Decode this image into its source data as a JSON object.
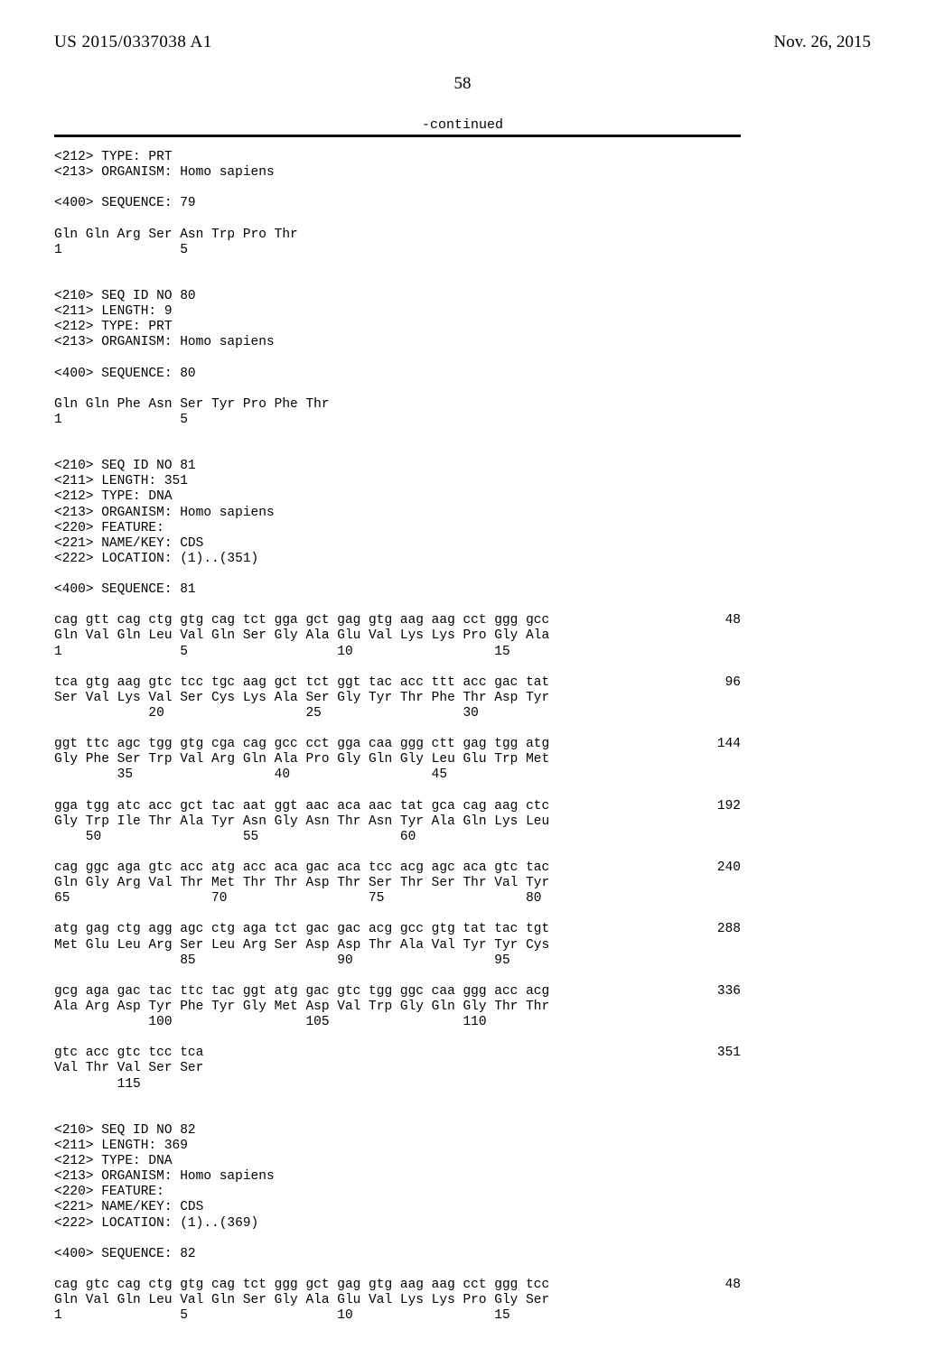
{
  "header": {
    "pub_num": "US 2015/0337038 A1",
    "pub_date": "Nov. 26, 2015"
  },
  "page_number": "58",
  "continued_label": "-continued",
  "blocks": [
    {
      "type": "meta",
      "lines": [
        "<212> TYPE: PRT",
        "<213> ORGANISM: Homo sapiens"
      ]
    },
    {
      "type": "blank"
    },
    {
      "type": "meta",
      "lines": [
        "<400> SEQUENCE: 79"
      ]
    },
    {
      "type": "blank"
    },
    {
      "type": "aa",
      "lines": [
        "Gln Gln Arg Ser Asn Trp Pro Thr",
        "1               5"
      ]
    },
    {
      "type": "blank"
    },
    {
      "type": "blank"
    },
    {
      "type": "meta",
      "lines": [
        "<210> SEQ ID NO 80",
        "<211> LENGTH: 9",
        "<212> TYPE: PRT",
        "<213> ORGANISM: Homo sapiens"
      ]
    },
    {
      "type": "blank"
    },
    {
      "type": "meta",
      "lines": [
        "<400> SEQUENCE: 80"
      ]
    },
    {
      "type": "blank"
    },
    {
      "type": "aa",
      "lines": [
        "Gln Gln Phe Asn Ser Tyr Pro Phe Thr",
        "1               5"
      ]
    },
    {
      "type": "blank"
    },
    {
      "type": "blank"
    },
    {
      "type": "meta",
      "lines": [
        "<210> SEQ ID NO 81",
        "<211> LENGTH: 351",
        "<212> TYPE: DNA",
        "<213> ORGANISM: Homo sapiens",
        "<220> FEATURE:",
        "<221> NAME/KEY: CDS",
        "<222> LOCATION: (1)..(351)"
      ]
    },
    {
      "type": "blank"
    },
    {
      "type": "meta",
      "lines": [
        "<400> SEQUENCE: 81"
      ]
    },
    {
      "type": "blank"
    },
    {
      "type": "codon",
      "dna": "cag gtt cag ctg gtg cag tct gga gct gag gtg aag aag cct ggg gcc",
      "count": "48",
      "aa": "Gln Val Gln Leu Val Gln Ser Gly Ala Glu Val Lys Lys Pro Gly Ala",
      "num": "1               5                   10                  15"
    },
    {
      "type": "blank"
    },
    {
      "type": "codon",
      "dna": "tca gtg aag gtc tcc tgc aag gct tct ggt tac acc ttt acc gac tat",
      "count": "96",
      "aa": "Ser Val Lys Val Ser Cys Lys Ala Ser Gly Tyr Thr Phe Thr Asp Tyr",
      "num": "            20                  25                  30"
    },
    {
      "type": "blank"
    },
    {
      "type": "codon",
      "dna": "ggt ttc agc tgg gtg cga cag gcc cct gga caa ggg ctt gag tgg atg",
      "count": "144",
      "aa": "Gly Phe Ser Trp Val Arg Gln Ala Pro Gly Gln Gly Leu Glu Trp Met",
      "num": "        35                  40                  45"
    },
    {
      "type": "blank"
    },
    {
      "type": "codon",
      "dna": "gga tgg atc acc gct tac aat ggt aac aca aac tat gca cag aag ctc",
      "count": "192",
      "aa": "Gly Trp Ile Thr Ala Tyr Asn Gly Asn Thr Asn Tyr Ala Gln Lys Leu",
      "num": "    50                  55                  60"
    },
    {
      "type": "blank"
    },
    {
      "type": "codon",
      "dna": "cag ggc aga gtc acc atg acc aca gac aca tcc acg agc aca gtc tac",
      "count": "240",
      "aa": "Gln Gly Arg Val Thr Met Thr Thr Asp Thr Ser Thr Ser Thr Val Tyr",
      "num": "65                  70                  75                  80"
    },
    {
      "type": "blank"
    },
    {
      "type": "codon",
      "dna": "atg gag ctg agg agc ctg aga tct gac gac acg gcc gtg tat tac tgt",
      "count": "288",
      "aa": "Met Glu Leu Arg Ser Leu Arg Ser Asp Asp Thr Ala Val Tyr Tyr Cys",
      "num": "                85                  90                  95"
    },
    {
      "type": "blank"
    },
    {
      "type": "codon",
      "dna": "gcg aga gac tac ttc tac ggt atg gac gtc tgg ggc caa ggg acc acg",
      "count": "336",
      "aa": "Ala Arg Asp Tyr Phe Tyr Gly Met Asp Val Trp Gly Gln Gly Thr Thr",
      "num": "            100                 105                 110"
    },
    {
      "type": "blank"
    },
    {
      "type": "codon",
      "dna": "gtc acc gtc tcc tca",
      "count": "351",
      "aa": "Val Thr Val Ser Ser",
      "num": "        115"
    },
    {
      "type": "blank"
    },
    {
      "type": "blank"
    },
    {
      "type": "meta",
      "lines": [
        "<210> SEQ ID NO 82",
        "<211> LENGTH: 369",
        "<212> TYPE: DNA",
        "<213> ORGANISM: Homo sapiens",
        "<220> FEATURE:",
        "<221> NAME/KEY: CDS",
        "<222> LOCATION: (1)..(369)"
      ]
    },
    {
      "type": "blank"
    },
    {
      "type": "meta",
      "lines": [
        "<400> SEQUENCE: 82"
      ]
    },
    {
      "type": "blank"
    },
    {
      "type": "codon",
      "dna": "cag gtc cag ctg gtg cag tct ggg gct gag gtg aag aag cct ggg tcc",
      "count": "48",
      "aa": "Gln Val Gln Leu Val Gln Ser Gly Ala Glu Val Lys Lys Pro Gly Ser",
      "num": "1               5                   10                  15"
    }
  ]
}
